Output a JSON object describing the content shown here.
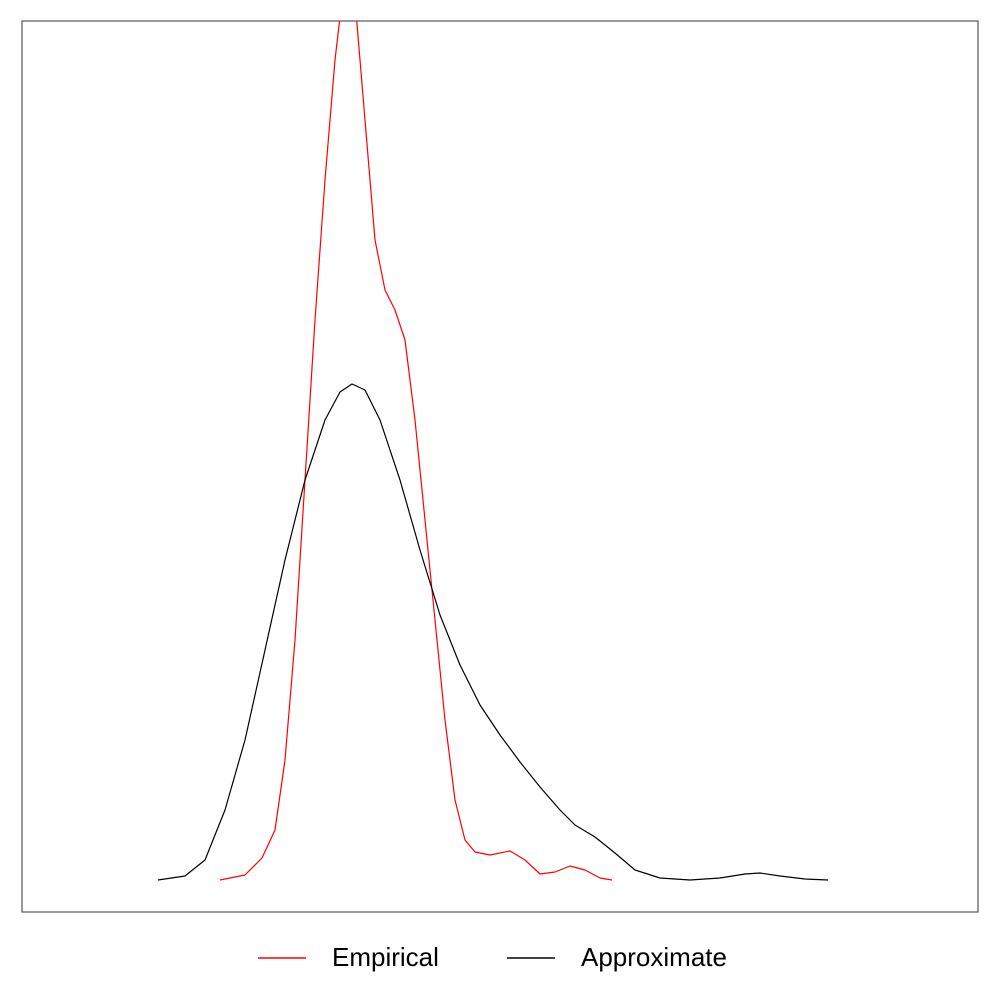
{
  "chart_data": {
    "type": "line",
    "xlim": [
      0,
      9.56
    ],
    "ylim": [
      -0.32,
      8.59
    ],
    "legend": "bottom",
    "series": [
      {
        "name": "Empirical",
        "color": "#ff0000",
        "x": [
          1.98,
          2.23,
          2.4,
          2.53,
          2.63,
          2.73,
          2.83,
          2.93,
          3.03,
          3.13,
          3.2,
          3.26,
          3.33,
          3.43,
          3.53,
          3.63,
          3.73,
          3.83,
          3.93,
          4.03,
          4.13,
          4.23,
          4.33,
          4.43,
          4.53,
          4.68,
          4.88,
          5.03,
          5.18,
          5.33,
          5.48,
          5.63,
          5.78,
          5.9
        ],
        "values": [
          0,
          0.05,
          0.22,
          0.5,
          1.2,
          2.4,
          4.0,
          5.6,
          7.0,
          8.2,
          8.8,
          9.0,
          8.8,
          7.6,
          6.4,
          5.9,
          5.7,
          5.4,
          4.6,
          3.6,
          2.6,
          1.6,
          0.8,
          0.4,
          0.28,
          0.25,
          0.29,
          0.2,
          0.06,
          0.08,
          0.14,
          0.1,
          0.02,
          0
        ]
      },
      {
        "name": "Approximate",
        "color": "#000000",
        "x": [
          1.36,
          1.63,
          1.83,
          2.03,
          2.23,
          2.43,
          2.63,
          2.83,
          3.03,
          3.18,
          3.3,
          3.43,
          3.58,
          3.78,
          3.98,
          4.18,
          4.38,
          4.58,
          4.78,
          4.98,
          5.18,
          5.38,
          5.53,
          5.73,
          5.93,
          6.13,
          6.38,
          6.68,
          6.98,
          7.23,
          7.38,
          7.58,
          7.83,
          8.06
        ],
        "values": [
          0,
          0.04,
          0.2,
          0.7,
          1.4,
          2.3,
          3.2,
          4.0,
          4.6,
          4.88,
          4.96,
          4.9,
          4.6,
          4.0,
          3.3,
          2.65,
          2.15,
          1.75,
          1.45,
          1.18,
          0.93,
          0.7,
          0.55,
          0.43,
          0.27,
          0.1,
          0.02,
          0,
          0.02,
          0.06,
          0.07,
          0.04,
          0.01,
          0
        ]
      }
    ]
  }
}
